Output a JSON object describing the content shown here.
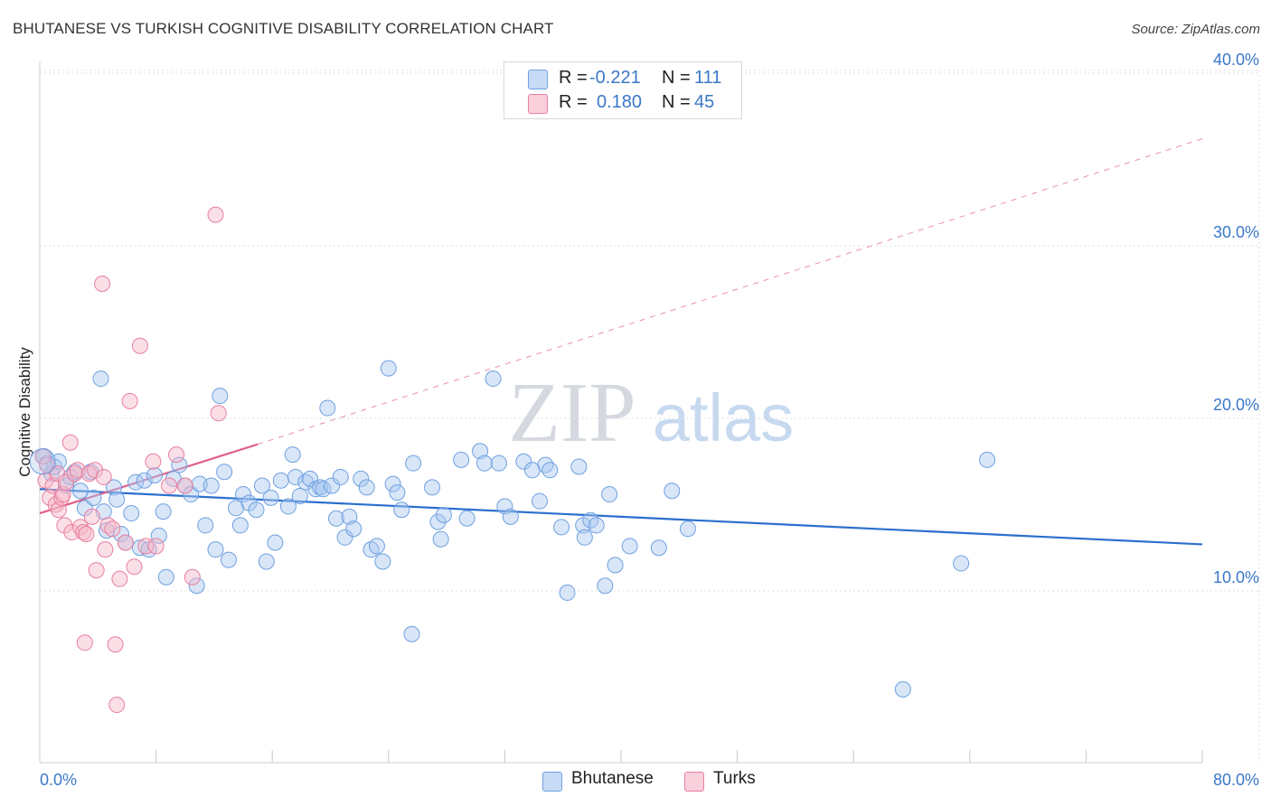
{
  "header": {
    "title": "BHUTANESE VS TURKISH COGNITIVE DISABILITY CORRELATION CHART",
    "source": "Source: ZipAtlas.com"
  },
  "watermark": {
    "zip": "ZIP",
    "atlas": "atlas"
  },
  "legend_top": {
    "rows": [
      {
        "r_label": "R =",
        "r_value": "-0.221",
        "n_label": "N =",
        "n_value": "111",
        "color": "#a9c8f0"
      },
      {
        "r_label": "R =",
        "r_value": "0.180",
        "n_label": "N =",
        "n_value": "45",
        "color": "#f6b8c8"
      }
    ]
  },
  "legend_bottom": {
    "items": [
      {
        "label": "Bhutanese",
        "color": "#a9c8f0"
      },
      {
        "label": "Turks",
        "color": "#f6b8c8"
      }
    ]
  },
  "chart_data": {
    "type": "scatter",
    "title": "BHUTANESE VS TURKISH COGNITIVE DISABILITY CORRELATION CHART",
    "xlabel": "",
    "ylabel": "Cognitive Disability",
    "xlim": [
      0,
      80
    ],
    "ylim": [
      0,
      41
    ],
    "x_tick_labels": [
      "0.0%",
      "80.0%"
    ],
    "y_ticks": [
      10,
      20,
      30,
      40
    ],
    "y_tick_labels": [
      "10.0%",
      "20.0%",
      "30.0%",
      "40.0%"
    ],
    "grid": true,
    "series": [
      {
        "name": "Bhutanese",
        "color": "#6fa0e0",
        "fill": "#a9c8f0",
        "r": -0.221,
        "n": 111,
        "trend": {
          "x0": 0,
          "y0": 15.9,
          "x1": 80,
          "y1": 12.7,
          "style": "solid",
          "stroke": "#2b6fce"
        },
        "points": [
          [
            0.3,
            17.8
          ],
          [
            0.5,
            17.4
          ],
          [
            0.8,
            16.8
          ],
          [
            1.0,
            17.2
          ],
          [
            1.3,
            17.5
          ],
          [
            1.8,
            16.1
          ],
          [
            2.1,
            16.6
          ],
          [
            2.4,
            16.9
          ],
          [
            2.8,
            15.8
          ],
          [
            3.1,
            14.8
          ],
          [
            3.5,
            16.9
          ],
          [
            3.7,
            15.4
          ],
          [
            4.2,
            22.3
          ],
          [
            4.4,
            14.6
          ],
          [
            4.6,
            13.5
          ],
          [
            5.1,
            16.0
          ],
          [
            5.3,
            15.3
          ],
          [
            5.6,
            13.3
          ],
          [
            5.9,
            12.8
          ],
          [
            6.3,
            14.5
          ],
          [
            6.6,
            16.3
          ],
          [
            6.9,
            12.5
          ],
          [
            7.2,
            16.4
          ],
          [
            7.5,
            12.4
          ],
          [
            7.9,
            16.7
          ],
          [
            8.2,
            13.2
          ],
          [
            8.5,
            14.6
          ],
          [
            8.7,
            10.8
          ],
          [
            9.2,
            16.5
          ],
          [
            9.6,
            17.3
          ],
          [
            10.0,
            16.1
          ],
          [
            10.4,
            15.6
          ],
          [
            10.8,
            10.3
          ],
          [
            11.0,
            16.2
          ],
          [
            11.4,
            13.8
          ],
          [
            11.8,
            16.1
          ],
          [
            12.1,
            12.4
          ],
          [
            12.4,
            21.3
          ],
          [
            12.7,
            16.9
          ],
          [
            13.0,
            11.8
          ],
          [
            13.5,
            14.8
          ],
          [
            13.8,
            13.8
          ],
          [
            14.0,
            15.6
          ],
          [
            14.4,
            15.1
          ],
          [
            14.9,
            14.7
          ],
          [
            15.3,
            16.1
          ],
          [
            15.6,
            11.7
          ],
          [
            15.9,
            15.4
          ],
          [
            16.2,
            12.8
          ],
          [
            16.6,
            16.4
          ],
          [
            17.1,
            14.9
          ],
          [
            17.4,
            17.9
          ],
          [
            17.6,
            16.6
          ],
          [
            17.9,
            15.5
          ],
          [
            18.3,
            16.3
          ],
          [
            18.6,
            16.5
          ],
          [
            19.0,
            15.9
          ],
          [
            19.3,
            16.0
          ],
          [
            19.5,
            15.9
          ],
          [
            19.8,
            20.6
          ],
          [
            20.1,
            16.1
          ],
          [
            20.4,
            14.2
          ],
          [
            20.7,
            16.6
          ],
          [
            21.0,
            13.1
          ],
          [
            21.3,
            14.3
          ],
          [
            21.6,
            13.6
          ],
          [
            22.1,
            16.5
          ],
          [
            22.5,
            16.0
          ],
          [
            22.8,
            12.4
          ],
          [
            23.2,
            12.6
          ],
          [
            23.6,
            11.7
          ],
          [
            24.0,
            22.9
          ],
          [
            24.3,
            16.2
          ],
          [
            24.6,
            15.7
          ],
          [
            24.9,
            14.7
          ],
          [
            25.6,
            7.5
          ],
          [
            25.7,
            17.4
          ],
          [
            27.0,
            16.0
          ],
          [
            27.4,
            14.0
          ],
          [
            27.6,
            13.0
          ],
          [
            27.8,
            14.4
          ],
          [
            29.0,
            17.6
          ],
          [
            29.4,
            14.2
          ],
          [
            30.3,
            18.1
          ],
          [
            30.6,
            17.4
          ],
          [
            31.2,
            22.3
          ],
          [
            31.6,
            17.4
          ],
          [
            32.0,
            14.9
          ],
          [
            32.4,
            14.3
          ],
          [
            33.3,
            17.5
          ],
          [
            33.9,
            17.0
          ],
          [
            34.4,
            15.2
          ],
          [
            34.8,
            17.3
          ],
          [
            35.1,
            17.0
          ],
          [
            35.9,
            13.7
          ],
          [
            36.3,
            9.9
          ],
          [
            37.1,
            17.2
          ],
          [
            37.4,
            13.8
          ],
          [
            37.5,
            13.1
          ],
          [
            37.9,
            14.1
          ],
          [
            38.3,
            13.8
          ],
          [
            38.9,
            10.3
          ],
          [
            39.2,
            15.6
          ],
          [
            39.6,
            11.5
          ],
          [
            40.6,
            12.6
          ],
          [
            42.6,
            12.5
          ],
          [
            43.5,
            15.8
          ],
          [
            44.6,
            13.6
          ],
          [
            63.4,
            11.6
          ],
          [
            65.2,
            17.6
          ],
          [
            59.4,
            4.3
          ]
        ]
      },
      {
        "name": "Turks",
        "color": "#e87fa0",
        "fill": "#f6b8c8",
        "r": 0.18,
        "n": 45,
        "trend": {
          "x0": 0,
          "y0": 14.5,
          "x1": 15,
          "y1": 18.5,
          "style": "solid",
          "stroke": "#e0608a",
          "ext_x1": 80,
          "ext_y1": 36.2,
          "ext_style": "dashed"
        },
        "points": [
          [
            0.2,
            17.8
          ],
          [
            0.4,
            16.4
          ],
          [
            0.5,
            17.3
          ],
          [
            0.7,
            15.4
          ],
          [
            0.9,
            16.1
          ],
          [
            1.1,
            15.0
          ],
          [
            1.2,
            16.8
          ],
          [
            1.3,
            14.7
          ],
          [
            1.5,
            15.4
          ],
          [
            1.6,
            15.6
          ],
          [
            1.7,
            13.8
          ],
          [
            1.8,
            16.3
          ],
          [
            2.1,
            18.6
          ],
          [
            2.2,
            13.4
          ],
          [
            2.4,
            16.8
          ],
          [
            2.6,
            17.0
          ],
          [
            2.8,
            13.7
          ],
          [
            3.0,
            13.4
          ],
          [
            3.1,
            7.0
          ],
          [
            3.2,
            13.3
          ],
          [
            3.4,
            16.8
          ],
          [
            3.6,
            14.3
          ],
          [
            3.8,
            17.0
          ],
          [
            3.9,
            11.2
          ],
          [
            4.3,
            27.8
          ],
          [
            4.4,
            16.6
          ],
          [
            4.5,
            12.4
          ],
          [
            4.7,
            13.8
          ],
          [
            5.0,
            13.6
          ],
          [
            5.2,
            6.9
          ],
          [
            5.3,
            3.4
          ],
          [
            5.5,
            10.7
          ],
          [
            5.9,
            12.8
          ],
          [
            6.2,
            21.0
          ],
          [
            6.5,
            11.4
          ],
          [
            6.9,
            24.2
          ],
          [
            7.3,
            12.6
          ],
          [
            7.8,
            17.5
          ],
          [
            8.0,
            12.6
          ],
          [
            8.9,
            16.1
          ],
          [
            9.4,
            17.9
          ],
          [
            10.0,
            16.1
          ],
          [
            10.5,
            10.8
          ],
          [
            12.1,
            31.8
          ],
          [
            12.3,
            20.3
          ]
        ]
      }
    ]
  }
}
